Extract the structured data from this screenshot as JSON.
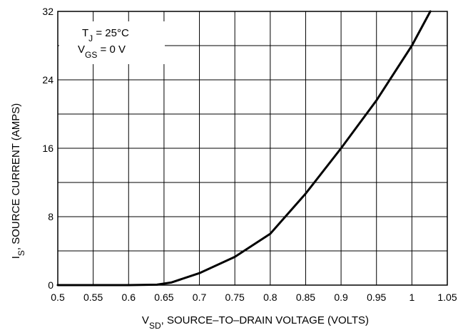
{
  "chart_data": {
    "type": "line",
    "title": "",
    "xlabel": {
      "main": "V",
      "sub": "SD",
      "rest": ", SOURCE–TO–DRAIN VOLTAGE (VOLTS)"
    },
    "ylabel": {
      "main": "I",
      "sub": "S",
      "rest": ", SOURCE CURRENT (AMPS)"
    },
    "xlim": [
      0.5,
      1.05
    ],
    "ylim": [
      0,
      32
    ],
    "x_ticks": [
      "0.5",
      "0.55",
      "0.6",
      "0.65",
      "0.7",
      "0.75",
      "0.8",
      "0.85",
      "0.9",
      "0.95",
      "1",
      "1.05"
    ],
    "y_ticks": [
      "0",
      "8",
      "16",
      "24",
      "32"
    ],
    "grid": true,
    "annotations": [
      {
        "main": "T",
        "sub": "J",
        "rest": " = 25°C"
      },
      {
        "main": "V",
        "sub": "GS",
        "rest": " = 0 V"
      }
    ],
    "series": [
      {
        "x": [
          0.5,
          0.6,
          0.64,
          0.66,
          0.7,
          0.75,
          0.8,
          0.85,
          0.9,
          0.95,
          1.0,
          1.026
        ],
        "y": [
          0,
          0,
          0.05,
          0.3,
          1.4,
          3.3,
          6.0,
          10.7,
          16.0,
          21.6,
          28.0,
          32.0
        ]
      }
    ]
  }
}
